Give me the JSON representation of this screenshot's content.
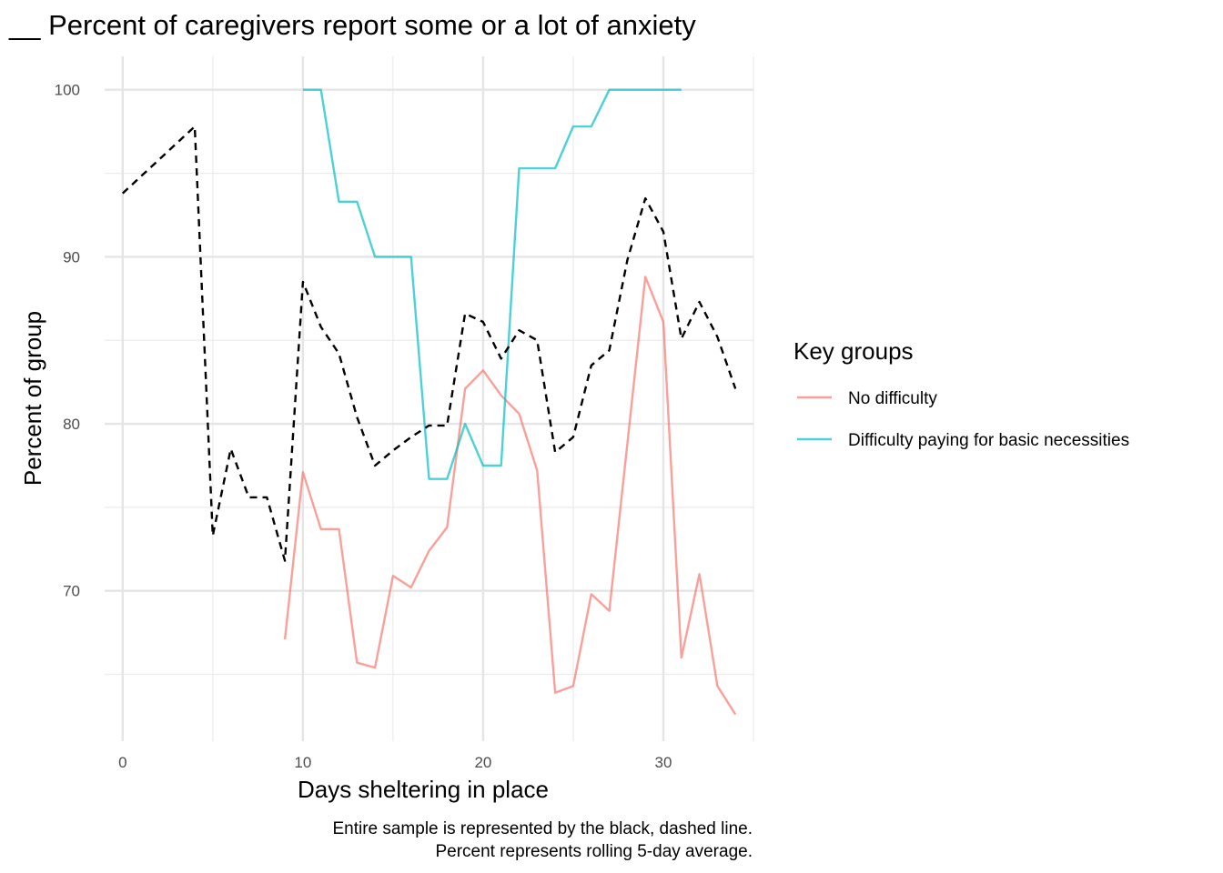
{
  "chart_data": {
    "type": "line",
    "title": "__ Percent of caregivers report some or a lot of anxiety",
    "xlabel": "Days sheltering in place",
    "ylabel": "Percent of group",
    "xlim": [
      -1,
      35
    ],
    "ylim": [
      61,
      102
    ],
    "x_ticks": [
      0,
      10,
      20,
      30
    ],
    "y_ticks": [
      70,
      80,
      90,
      100
    ],
    "grid": true,
    "caption": [
      "Entire sample is represented by the black, dashed line.",
      "Percent represents rolling 5-day average."
    ],
    "legend": {
      "title": "Key groups",
      "placement": "right",
      "entries": [
        {
          "label": "No difficulty",
          "color": "#f8766d"
        },
        {
          "label": "Difficulty paying for basic necessities",
          "color": "#00bfc4"
        }
      ]
    },
    "series": [
      {
        "color": "#000000",
        "style": "dashed",
        "x": [
          0,
          1,
          2,
          3,
          4,
          5,
          6,
          7,
          8,
          9,
          10,
          11,
          12,
          13,
          14,
          15,
          16,
          17,
          18,
          19,
          20,
          21,
          22,
          23,
          24,
          25,
          26,
          27,
          28,
          29,
          30,
          31,
          32,
          33,
          34
        ],
        "y": [
          93.8,
          94.8,
          95.8,
          96.8,
          97.8,
          73.3,
          78.5,
          75.6,
          75.6,
          71.8,
          88.5,
          85.8,
          84.2,
          80.4,
          77.5,
          78.4,
          79.2,
          79.9,
          79.9,
          86.6,
          86.1,
          83.9,
          85.6,
          85.0,
          78.3,
          79.2,
          83.5,
          84.4,
          89.8,
          93.5,
          91.5,
          85.1,
          87.3,
          85.2,
          82.1
        ]
      },
      {
        "name": "No difficulty",
        "color": "#f8766d",
        "style": "solid",
        "x": [
          9,
          10,
          11,
          12,
          13,
          14,
          15,
          16,
          17,
          18,
          19,
          20,
          21,
          22,
          23,
          24,
          25,
          26,
          27,
          28,
          29,
          30,
          31,
          32,
          33,
          34
        ],
        "y": [
          67.1,
          77.1,
          73.7,
          73.7,
          65.7,
          65.4,
          70.9,
          70.2,
          72.4,
          73.8,
          82.1,
          83.2,
          81.7,
          80.6,
          77.2,
          63.9,
          64.3,
          69.8,
          68.8,
          78.8,
          88.8,
          86.1,
          66.0,
          71.0,
          64.3,
          62.6
        ]
      },
      {
        "name": "Difficulty paying for basic necessities",
        "color": "#00bfc4",
        "style": "solid",
        "x": [
          10,
          11,
          12,
          13,
          14,
          15,
          16,
          17,
          18,
          19,
          20,
          21,
          22,
          23,
          24,
          25,
          26,
          27,
          28,
          29,
          30,
          31
        ],
        "y": [
          100,
          100,
          93.3,
          93.3,
          90,
          90,
          90,
          76.7,
          76.7,
          80,
          77.5,
          77.5,
          95.3,
          95.3,
          95.3,
          97.8,
          97.8,
          100,
          100,
          100,
          100,
          100
        ]
      }
    ]
  }
}
